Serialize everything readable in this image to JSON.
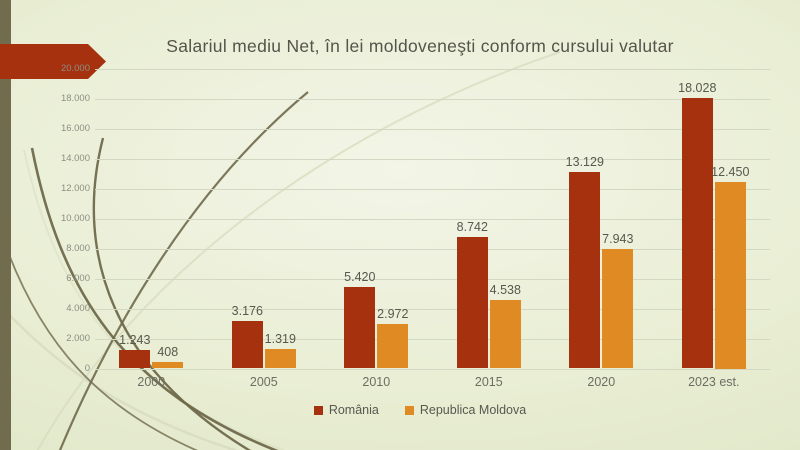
{
  "slide": {
    "title": "Salariul mediu Net, în lei moldoveneşti conform cursului valutar"
  },
  "chart_data": {
    "type": "bar",
    "title": "Salariul mediu Net, în lei moldoveneşti conform cursului valutar",
    "categories": [
      "2000",
      "2005",
      "2010",
      "2015",
      "2020",
      "2023 est."
    ],
    "series": [
      {
        "name": "România",
        "color": "#A5310F",
        "values": [
          1243,
          3176,
          5420,
          8742,
          13129,
          18028
        ]
      },
      {
        "name": "Republica Moldova",
        "color": "#E08A24",
        "values": [
          408,
          1319,
          2972,
          4538,
          7943,
          12450
        ]
      }
    ],
    "xlabel": "",
    "ylabel": "",
    "ylim": [
      0,
      20000
    ],
    "ytick_step": 2000,
    "grid": true,
    "legend_position": "bottom",
    "data_labels": true,
    "number_format": "thousands-dot",
    "tick_labels_y": [
      "0",
      "2.000",
      "4.000",
      "6.000",
      "8.000",
      "10.000",
      "12.000",
      "14.000",
      "16.000",
      "18.000",
      "20.000"
    ]
  },
  "decoration": {
    "left_bar_color": "#726c4e",
    "arrow_color": "#A5310F",
    "grass_dark": "#6f694b",
    "grass_light": "#d8dbbe"
  }
}
